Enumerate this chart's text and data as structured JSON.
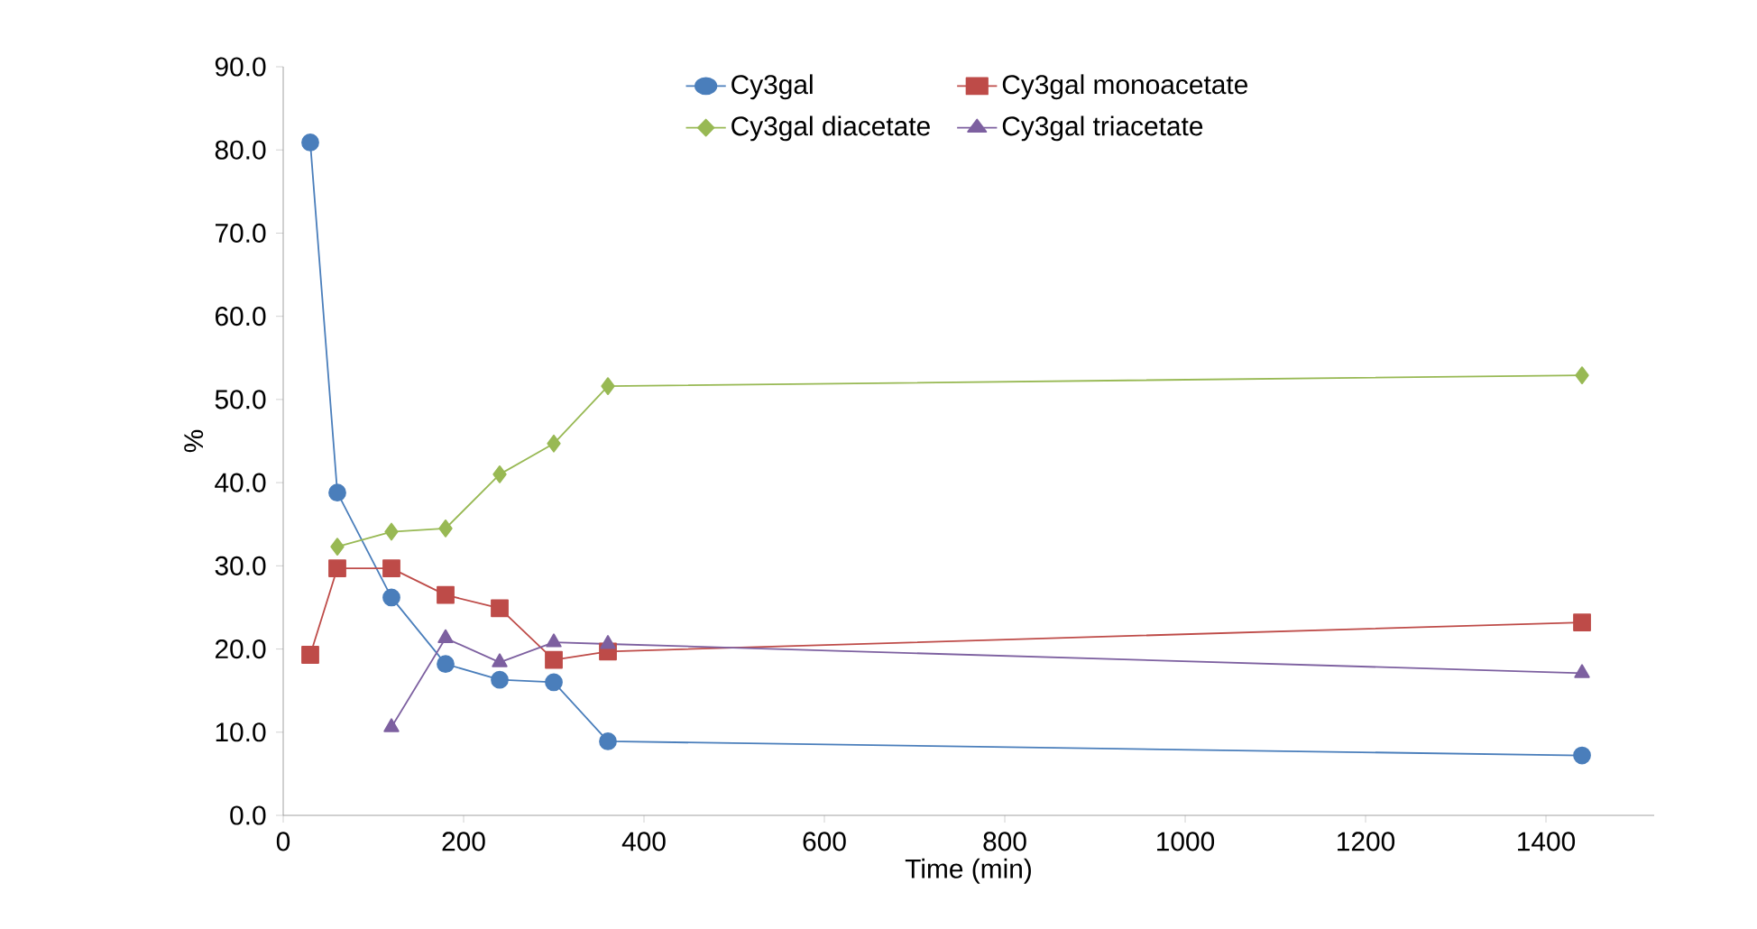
{
  "chart_data": {
    "type": "line",
    "xlabel": "Time (min)",
    "ylabel": "%",
    "x": [
      30,
      60,
      120,
      180,
      240,
      300,
      360,
      1440
    ],
    "series": [
      {
        "name": "Cy3gal",
        "color": "#4a7ebb",
        "marker": "circle",
        "values": [
          80.9,
          38.8,
          26.2,
          18.2,
          16.3,
          16.0,
          8.9,
          7.2
        ]
      },
      {
        "name": "Cy3gal monoacetate",
        "color": "#be4b48",
        "marker": "square",
        "values": [
          19.3,
          29.7,
          29.7,
          26.5,
          24.9,
          18.7,
          19.7,
          23.2
        ]
      },
      {
        "name": "Cy3gal diacetate",
        "color": "#98b954",
        "marker": "diamond",
        "values": [
          null,
          32.3,
          34.1,
          34.5,
          41.0,
          44.7,
          51.6,
          52.9
        ]
      },
      {
        "name": "Cy3gal triacetate",
        "color": "#7d60a0",
        "marker": "triangle",
        "values": [
          null,
          null,
          10.6,
          21.3,
          18.4,
          20.8,
          20.6,
          17.1
        ]
      }
    ],
    "xlim": [
      0,
      1520
    ],
    "xticks": [
      0,
      200,
      400,
      600,
      800,
      1000,
      1200,
      1400
    ],
    "ylim": [
      0,
      90
    ],
    "yticks": [
      {
        "value": 0,
        "label": "0.0"
      },
      {
        "value": 10,
        "label": "10.0"
      },
      {
        "value": 20,
        "label": "20.0"
      },
      {
        "value": 30,
        "label": "30.0"
      },
      {
        "value": 40,
        "label": "40.0"
      },
      {
        "value": 50,
        "label": "50.0"
      },
      {
        "value": 60,
        "label": "60.0"
      },
      {
        "value": 70,
        "label": "70.0"
      },
      {
        "value": 80,
        "label": "80.0"
      },
      {
        "value": 90,
        "label": "90.0"
      }
    ],
    "grid": false,
    "legend": "top",
    "line_style": "solid"
  }
}
